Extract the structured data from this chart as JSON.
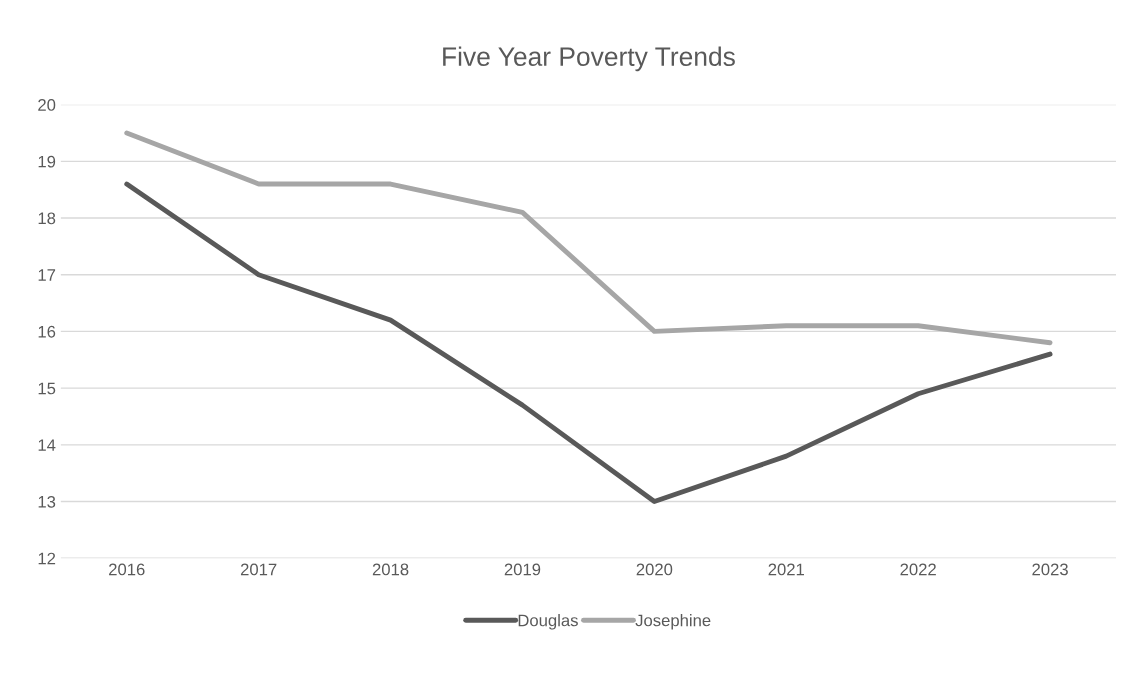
{
  "chart_data": {
    "type": "line",
    "title": "Five Year Poverty Trends",
    "categories": [
      "2016",
      "2017",
      "2018",
      "2019",
      "2020",
      "2021",
      "2022",
      "2023"
    ],
    "series": [
      {
        "name": "Douglas",
        "color": "#595959",
        "values": [
          18.6,
          17.0,
          16.2,
          14.7,
          13.0,
          13.8,
          14.9,
          15.6
        ]
      },
      {
        "name": "Josephine",
        "color": "#a6a6a6",
        "values": [
          19.5,
          18.6,
          18.6,
          18.1,
          16.0,
          16.1,
          16.1,
          15.8
        ]
      }
    ],
    "ylim": [
      12,
      20
    ],
    "yticks": [
      12,
      13,
      14,
      15,
      16,
      17,
      18,
      19,
      20
    ],
    "grid": "y",
    "legend": "bottom",
    "marker": "none",
    "line_style": "solid"
  }
}
